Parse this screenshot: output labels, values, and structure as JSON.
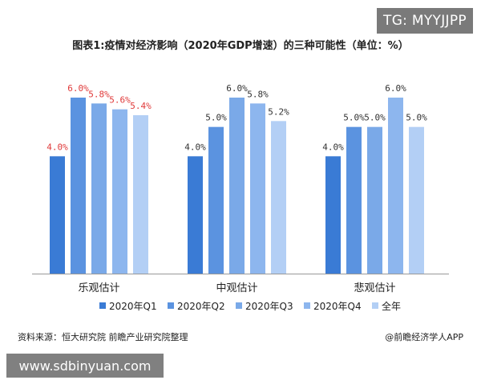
{
  "watermark_top": "TG: MYYJJPP",
  "watermark_bottom": "www.sdbinyuan.com",
  "footer": {
    "source": "资料来源：恒大研究院 前瞻产业研究院整理",
    "credit": "@前瞻经济学人APP"
  },
  "colors": {
    "series": [
      "#3a7bd5",
      "#5b93e0",
      "#7aa9e8",
      "#8db6ee",
      "#b3cff5"
    ],
    "label_red": "#e03a3a",
    "label_dark": "#333333"
  },
  "chart_data": {
    "type": "bar",
    "title": "图表1:疫情对经济影响（2020年GDP增速）的三种可能性（单位：%）",
    "categories": [
      "乐观估计",
      "中观估计",
      "悲观估计"
    ],
    "series": [
      {
        "name": "2020年Q1",
        "values": [
          4.0,
          4.0,
          4.0
        ]
      },
      {
        "name": "2020年Q2",
        "values": [
          6.0,
          5.0,
          5.0
        ]
      },
      {
        "name": "2020年Q3",
        "values": [
          5.8,
          6.0,
          5.0
        ]
      },
      {
        "name": "2020年Q4",
        "values": [
          5.6,
          5.8,
          6.0
        ]
      },
      {
        "name": "全年",
        "values": [
          5.4,
          5.2,
          5.0
        ]
      }
    ],
    "data_labels": [
      [
        "4.0%",
        "6.0%",
        "5.8%",
        "5.6%",
        "5.4%"
      ],
      [
        "4.0%",
        "5.0%",
        "6.0%",
        "5.8%",
        "5.2%"
      ],
      [
        "4.0%",
        "5.0%",
        "5.0%",
        "6.0%",
        "5.0%"
      ]
    ],
    "label_red_group": 0,
    "ylim": [
      0,
      6
    ],
    "grid": false,
    "legend": "bottom"
  }
}
